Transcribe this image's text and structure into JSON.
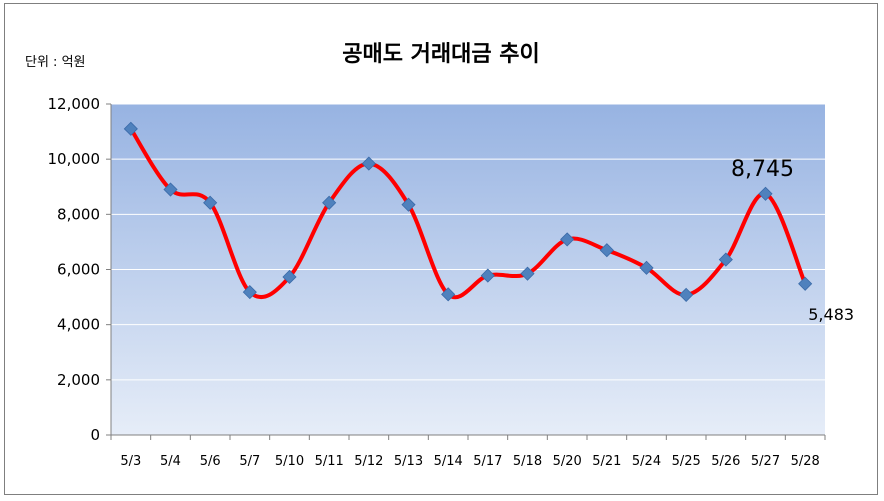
{
  "chart_data": {
    "type": "line",
    "title": "공매도 거래대금 추이",
    "unit_label": "단위 : 억원",
    "categories": [
      "5/3",
      "5/4",
      "5/6",
      "5/7",
      "5/10",
      "5/11",
      "5/12",
      "5/13",
      "5/14",
      "5/17",
      "5/18",
      "5/20",
      "5/21",
      "5/24",
      "5/25",
      "5/26",
      "5/27",
      "5/28"
    ],
    "series": [
      {
        "values": [
          11100,
          8900,
          8420,
          5180,
          5730,
          8420,
          9840,
          8350,
          5100,
          5780,
          5850,
          7090,
          6700,
          6060,
          5080,
          6360,
          8745,
          5483
        ]
      }
    ],
    "ylim": [
      0,
      12000
    ],
    "yticks": [
      "0",
      "2,000",
      "4,000",
      "6,000",
      "8,000",
      "10,000",
      "12,000"
    ],
    "ytick_values": [
      0,
      2000,
      4000,
      6000,
      8000,
      10000,
      12000
    ],
    "data_labels": [
      {
        "index": 16,
        "text": "8,745"
      },
      {
        "index": 17,
        "text": "5,483"
      }
    ],
    "grid": true,
    "line_color": "#ff0000",
    "marker_color": "#4f81bd",
    "plot_gradient_top": "#97b3e2",
    "plot_gradient_bottom": "#e6edf8"
  }
}
